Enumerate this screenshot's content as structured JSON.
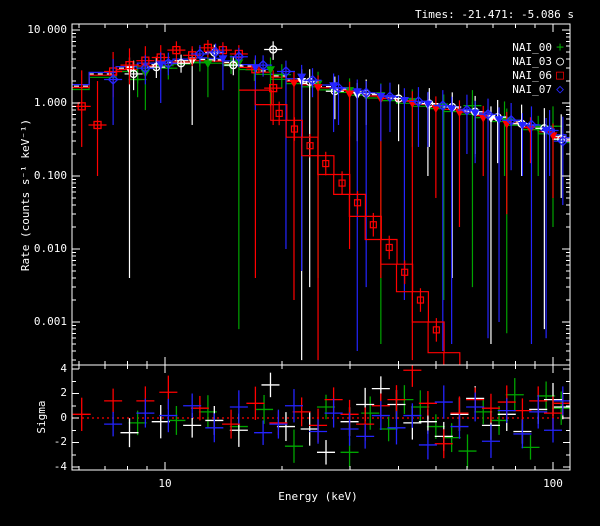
{
  "header": {
    "times_label": "Times: -21.471: -5.086 s"
  },
  "chart_data": {
    "type": "line",
    "title": "",
    "xlabel": "Energy (keV)",
    "ylabel_main": "Rate (counts s⁻¹ keV⁻¹)",
    "ylabel_resid": "Sigma",
    "xscale": "log",
    "yscale_main": "log",
    "xlim": [
      5.76,
      110.6
    ],
    "ylim_main": [
      0.000264,
      12.1
    ],
    "ylim_resid": [
      -4.2,
      4.3
    ],
    "grid": false,
    "legend_position": "top-right",
    "x_major_ticks": [
      10,
      100
    ],
    "x_tick_labels": [
      "10",
      "100"
    ],
    "x_minor_ticks": [
      6,
      7,
      8,
      9,
      20,
      30,
      40,
      50,
      60,
      70,
      80,
      90
    ],
    "y_major_ticks_main": [
      10,
      1,
      0.1,
      0.01,
      0.001
    ],
    "y_tick_labels_main": [
      "10.000",
      "1.000",
      "0.100",
      "0.010",
      "0.001"
    ],
    "resid_major_ticks": [
      4,
      2,
      0,
      -2,
      -4
    ],
    "resid_tick_labels": [
      "4",
      "2",
      "0",
      "-2",
      "-4"
    ],
    "resid_minor_ticks": [
      3,
      1,
      -1,
      -3
    ],
    "zero_line": {
      "color": "#ff0000",
      "style": "dotted",
      "value": 0
    },
    "model_anchors": {
      "E": [
        5.8,
        7,
        8,
        9,
        10,
        11,
        12.3,
        13.5,
        14.8,
        16.3,
        17.9,
        19.6,
        21.5,
        23.6,
        26,
        28.5,
        31.3,
        34.4,
        37.7,
        41.4,
        45.5,
        49.9,
        54.8,
        60.2,
        66.1,
        72.6,
        79.7,
        87.5,
        96.1,
        105.5,
        110.6
      ],
      "rate": [
        1.7,
        2.5,
        3.0,
        3.35,
        3.6,
        3.8,
        3.95,
        3.9,
        3.6,
        3.2,
        2.75,
        2.35,
        2.05,
        1.85,
        1.68,
        1.55,
        1.42,
        1.3,
        1.2,
        1.1,
        1.0,
        0.93,
        0.85,
        0.78,
        0.7,
        0.62,
        0.55,
        0.48,
        0.42,
        0.35,
        0.32
      ]
    },
    "cutoff_model": {
      "color": "#ff0000",
      "second_line_shift": 1.1,
      "E": [
        16.3,
        17.9,
        19.6,
        21.5,
        23.6,
        26,
        28.5,
        31.3,
        34.4,
        37.7,
        41.4,
        45.5,
        49.9,
        54.8
      ],
      "rate": [
        1.5,
        0.95,
        0.58,
        0.34,
        0.19,
        0.105,
        0.056,
        0.028,
        0.0135,
        0.0062,
        0.0026,
        0.001,
        0.00038,
        0.00015
      ],
      "squares": {
        "E": [
          17.9,
          19.6,
          21.5,
          23.6,
          26,
          28.5,
          31.3,
          34.4,
          37.7,
          41.4,
          45.5
        ],
        "rate": [
          0.72,
          0.44,
          0.26,
          0.148,
          0.08,
          0.043,
          0.0215,
          0.0105,
          0.0048,
          0.002,
          0.00078
        ]
      }
    },
    "detectors": [
      {
        "name": "NAI_00",
        "color": "#00a400",
        "glyph": "+",
        "marker": "plus",
        "model_scale": 0.9,
        "points": [
          [
            8.5,
            2.1,
            1.2,
            3.3
          ],
          [
            10.2,
            3.0,
            2.1,
            4.2
          ],
          [
            12.3,
            3.6,
            2.7,
            4.8
          ],
          [
            14.8,
            3.4,
            2.5,
            4.5
          ],
          [
            17,
            2.85,
            2.0,
            3.9
          ],
          [
            20,
            2.45,
            1.6,
            3.4
          ],
          [
            62,
            0.92,
            0.003,
            1.5
          ],
          [
            75,
            0.6,
            0.1,
            1.05
          ],
          [
            100,
            0.48,
            0.02,
            0.9
          ]
        ],
        "upper_limits": [
          [
            8.9,
            2.6,
            0.8
          ],
          [
            12.9,
            3.5,
            1.2
          ],
          [
            15.5,
            3.6,
            0.0008
          ],
          [
            18.7,
            2.9,
            0.9
          ],
          [
            24.8,
            1.85,
            0.004
          ],
          [
            29.9,
            1.5,
            0.35
          ],
          [
            36,
            1.28,
            0.0005
          ],
          [
            43.4,
            1.06,
            0.25
          ],
          [
            52.3,
            0.9,
            0.002
          ],
          [
            63,
            0.75,
            0.18
          ],
          [
            76,
            0.58,
            0.0007
          ],
          [
            91.6,
            0.46,
            0.1
          ]
        ],
        "residuals": [
          [
            8.5,
            -0.4
          ],
          [
            10.7,
            -0.2
          ],
          [
            12.9,
            0.5
          ],
          [
            15.5,
            -0.7
          ],
          [
            18,
            0.7
          ],
          [
            21.5,
            -2.3
          ],
          [
            26,
            0.9
          ],
          [
            29.9,
            -2.8
          ],
          [
            33.8,
            0.4
          ],
          [
            37.7,
            -0.9
          ],
          [
            41.4,
            1.5
          ],
          [
            45.5,
            0.9
          ],
          [
            49.9,
            -0.7
          ],
          [
            54.8,
            -1.6
          ],
          [
            60.2,
            -2.7
          ],
          [
            66.1,
            0.5
          ],
          [
            72.6,
            -0.2
          ],
          [
            79.7,
            1.9
          ],
          [
            87.5,
            -2.4
          ],
          [
            96,
            1.8
          ],
          [
            105,
            0.8
          ]
        ]
      },
      {
        "name": "NAI_03",
        "color": "#ffffff",
        "glyph": "○",
        "marker": "circle",
        "model_scale": 1.0,
        "model_dash": true,
        "points": [
          [
            8.3,
            2.5,
            1.5,
            3.8
          ],
          [
            9.5,
            3.1,
            2.2,
            4.3
          ],
          [
            11,
            3.5,
            2.6,
            4.6
          ],
          [
            13.4,
            4.9,
            3.7,
            6.3
          ],
          [
            15,
            3.3,
            2.4,
            4.4
          ],
          [
            19,
            5.4,
            3.9,
            7.0
          ],
          [
            23.6,
            1.95,
            0.003,
            2.9
          ],
          [
            27.4,
            1.45,
            0.6,
            2.3
          ],
          [
            33,
            1.35,
            0.5,
            2.1
          ],
          [
            40,
            1.15,
            0.3,
            1.8
          ],
          [
            48,
            0.98,
            0.25,
            1.6
          ],
          [
            55,
            0.88,
            0.004,
            1.4
          ],
          [
            63,
            0.76,
            0.2,
            1.25
          ],
          [
            72,
            0.64,
            0.15,
            1.1
          ],
          [
            83,
            0.52,
            0.1,
            0.95
          ],
          [
            95,
            0.45,
            0.0008,
            0.85
          ],
          [
            105,
            0.32,
            0.05,
            0.7
          ]
        ],
        "upper_limits": [
          [
            8.1,
            2.9,
            0.004
          ],
          [
            11.75,
            3.8,
            0.5
          ],
          [
            22.5,
            2.0,
            0.0003
          ],
          [
            31.3,
            1.3,
            0.3
          ],
          [
            47.6,
            0.95,
            0.1
          ],
          [
            69.2,
            0.62,
            0.0005
          ]
        ],
        "residuals": [
          [
            8.1,
            -1.2
          ],
          [
            9.75,
            -0.3
          ],
          [
            11.75,
            -0.6
          ],
          [
            13.4,
            -0.2
          ],
          [
            15.5,
            -1.0
          ],
          [
            18.7,
            2.7
          ],
          [
            20.5,
            -0.7
          ],
          [
            23.6,
            -0.9
          ],
          [
            26,
            -2.8
          ],
          [
            29.9,
            -0.3
          ],
          [
            32.8,
            1.1
          ],
          [
            36,
            2.4
          ],
          [
            39.5,
            1.1
          ],
          [
            43.4,
            -0.4
          ],
          [
            47.6,
            -0.3
          ],
          [
            52.3,
            -1.5
          ],
          [
            57.4,
            0.3
          ],
          [
            63,
            1.6
          ],
          [
            69.2,
            -0.6
          ],
          [
            76,
            0.3
          ],
          [
            83.4,
            -1.1
          ],
          [
            91.6,
            0.7
          ],
          [
            100,
            1.5
          ],
          [
            106,
            0.9
          ]
        ]
      },
      {
        "name": "NAI_06",
        "color": "#ff0000",
        "glyph": "□",
        "marker": "square",
        "model_scale": 0.96,
        "points": [
          [
            6.1,
            0.9,
            0.25,
            2.8
          ],
          [
            6.7,
            0.5,
            0.1,
            2.0
          ],
          [
            7.35,
            2.7,
            1.2,
            5.0
          ],
          [
            8.1,
            3.3,
            1.8,
            5.6
          ],
          [
            8.9,
            3.8,
            2.2,
            6.0
          ],
          [
            9.75,
            4.2,
            2.8,
            6.2
          ],
          [
            10.7,
            5.3,
            3.8,
            7.0
          ],
          [
            11.75,
            4.5,
            3.2,
            6.0
          ],
          [
            12.9,
            5.7,
            4.2,
            7.3
          ],
          [
            14.1,
            5.3,
            3.9,
            6.8
          ],
          [
            15.5,
            4.7,
            3.4,
            6.2
          ],
          [
            17.1,
            2.9,
            0.004,
            4.2
          ],
          [
            19,
            1.6,
            0.5,
            2.8
          ]
        ],
        "upper_limits": [
          [
            21.5,
            1.9,
            0.002
          ],
          [
            24.8,
            1.65,
            0.0003
          ],
          [
            29.9,
            1.35,
            0.01
          ],
          [
            36,
            1.15,
            0.004
          ],
          [
            43.4,
            1.0,
            0.0003
          ],
          [
            49.9,
            0.85,
            0.05
          ],
          [
            57.4,
            0.75,
            0.02
          ],
          [
            66.1,
            0.63,
            0.1
          ],
          [
            76,
            0.52,
            0.03
          ],
          [
            87.5,
            0.44,
            0.15
          ],
          [
            100,
            0.36,
            0.05
          ]
        ],
        "residuals": [
          [
            6.1,
            0.3
          ],
          [
            7.35,
            1.4
          ],
          [
            8.9,
            1.4
          ],
          [
            10.2,
            2.1
          ],
          [
            12.3,
            0.8
          ],
          [
            14.8,
            -0.5
          ],
          [
            17.1,
            1.2
          ],
          [
            19.6,
            -0.4
          ],
          [
            22.5,
            0.5
          ],
          [
            24.8,
            -0.6
          ],
          [
            27.2,
            1.5
          ],
          [
            29.9,
            0.3
          ],
          [
            32.8,
            -0.5
          ],
          [
            36,
            1.0
          ],
          [
            39.5,
            1.5
          ],
          [
            43.4,
            3.9
          ],
          [
            47.6,
            1.2
          ],
          [
            52.3,
            -2.1
          ],
          [
            57.4,
            0.4
          ],
          [
            63,
            1.5
          ],
          [
            69.2,
            0.8
          ],
          [
            76,
            1.3
          ],
          [
            83.4,
            0.6
          ],
          [
            91.6,
            1.4
          ],
          [
            100,
            0.4
          ],
          [
            106,
            1.2
          ]
        ]
      },
      {
        "name": "NAI_07",
        "color": "#2424ff",
        "glyph": "◇",
        "marker": "diamond",
        "model_scale": 1.05,
        "points": [
          [
            7.35,
            2.1,
            0.5,
            4.0
          ],
          [
            8.9,
            3.0,
            1.8,
            4.5
          ],
          [
            10.2,
            3.5,
            2.4,
            4.9
          ],
          [
            12.3,
            4.7,
            3.5,
            6.2
          ],
          [
            13.5,
            5.0,
            3.8,
            6.5
          ],
          [
            15.5,
            4.3,
            3.1,
            5.7
          ],
          [
            17.9,
            3.3,
            2.3,
            4.5
          ],
          [
            20.5,
            2.7,
            0.01,
            3.8
          ],
          [
            24,
            2.05,
            1.2,
            3.0
          ],
          [
            28,
            1.6,
            0.5,
            2.4
          ],
          [
            33,
            1.38,
            0.003,
            2.0
          ],
          [
            38,
            1.22,
            0.4,
            1.9
          ],
          [
            45,
            1.05,
            0.25,
            1.65
          ],
          [
            52,
            0.92,
            0.0004,
            1.5
          ],
          [
            60,
            0.8,
            0.2,
            1.3
          ],
          [
            68,
            0.7,
            0.0006,
            1.15
          ],
          [
            78,
            0.58,
            0.12,
            1.0
          ],
          [
            88,
            0.5,
            0.0005,
            0.9
          ],
          [
            98,
            0.42,
            0.1,
            0.8
          ],
          [
            106,
            0.3,
            0.04,
            0.65
          ]
        ],
        "upper_limits": [
          [
            9.75,
            3.4,
            1.0
          ],
          [
            14.1,
            4.1,
            1.5
          ],
          [
            17.1,
            3.1,
            0.8
          ],
          [
            22.5,
            2.3,
            0.005
          ],
          [
            27.2,
            1.75,
            0.4
          ],
          [
            31.3,
            1.45,
            0.0004
          ],
          [
            36,
            1.25,
            0.3
          ],
          [
            41.4,
            1.1,
            0.002
          ],
          [
            47.6,
            0.98,
            0.25
          ],
          [
            54.8,
            0.84,
            0.0005
          ],
          [
            63,
            0.74,
            0.15
          ],
          [
            72.6,
            0.6,
            0.001
          ],
          [
            83.4,
            0.5,
            0.1
          ],
          [
            96,
            0.43,
            0.0006
          ]
        ],
        "residuals": [
          [
            7.35,
            -0.5
          ],
          [
            8.9,
            0.4
          ],
          [
            10.2,
            0.2
          ],
          [
            11.75,
            1.0
          ],
          [
            13.4,
            -0.8
          ],
          [
            15.5,
            0.9
          ],
          [
            17.9,
            -1.2
          ],
          [
            19.6,
            -0.5
          ],
          [
            21.5,
            1.0
          ],
          [
            24.8,
            -1.1
          ],
          [
            27.2,
            0.4
          ],
          [
            29.9,
            -0.9
          ],
          [
            32.8,
            -1.5
          ],
          [
            36,
            0.2
          ],
          [
            39.5,
            -0.8
          ],
          [
            43.4,
            0.2
          ],
          [
            47.6,
            -2.2
          ],
          [
            52.3,
            1.3
          ],
          [
            57.4,
            -0.7
          ],
          [
            63,
            0.9
          ],
          [
            69.2,
            -1.9
          ],
          [
            76,
            0.6
          ],
          [
            83.4,
            -1.3
          ],
          [
            91.6,
            0.5
          ],
          [
            100,
            -1.0
          ],
          [
            106,
            1.4
          ]
        ]
      }
    ]
  }
}
